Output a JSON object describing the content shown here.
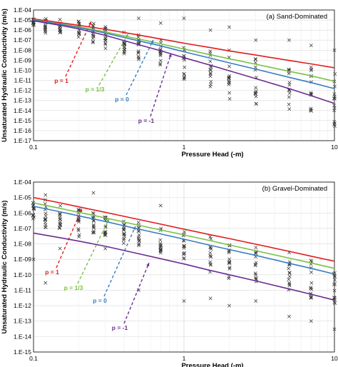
{
  "chart_data": [
    {
      "type": "line",
      "title": "(a) Sand-Dominated",
      "xlabel": "Pressure Head (-m)",
      "ylabel": "Unsaturated Hydraulic Conductivity (m/s)",
      "xscale": "log",
      "yscale": "log",
      "xlim": [
        0.1,
        10
      ],
      "ylim": [
        1e-17,
        0.0001
      ],
      "x_tick_labels": [
        "0.1",
        "1",
        "10"
      ],
      "y_tick_labels": [
        "1.E-17",
        "1.E-16",
        "1.E-15",
        "1.E-14",
        "1.E-13",
        "1.E-12",
        "1.E-11",
        "1.E-10",
        "1.E-09",
        "1.E-08",
        "1.E-07",
        "1.E-06",
        "1.E-05",
        "1.E-04"
      ],
      "grid": true,
      "series": [
        {
          "name": "p = 1",
          "color": "#e31a1c",
          "x": [
            0.1,
            0.15,
            0.2,
            0.3,
            0.5,
            0.7,
            1,
            1.5,
            2,
            3,
            5,
            7,
            10
          ],
          "y": [
            1.3e-05,
            5.5e-06,
            3e-06,
            1.2e-06,
            3.2e-07,
            1.3e-07,
            5e-08,
            1.8e-08,
            8.5e-09,
            3.3e-09,
            9.5e-10,
            4.3e-10,
            1.8e-10
          ]
        },
        {
          "name": "p = 1/3",
          "color": "#7ac143",
          "x": [
            0.1,
            0.15,
            0.2,
            0.3,
            0.5,
            0.7,
            1,
            1.5,
            2,
            3,
            5,
            7,
            10
          ],
          "y": [
            1.1e-05,
            4.2e-06,
            2.1e-06,
            6.5e-07,
            1.3e-07,
            4.3e-08,
            1.3e-08,
            3.5e-09,
            1.4e-09,
            4e-10,
            8e-11,
            2.8e-11,
            8e-12
          ]
        },
        {
          "name": "p = 0",
          "color": "#3a7cc4",
          "x": [
            0.1,
            0.15,
            0.2,
            0.3,
            0.5,
            0.7,
            1,
            1.5,
            2,
            3,
            5,
            7,
            10
          ],
          "y": [
            1e-05,
            3.8e-06,
            1.8e-06,
            5e-07,
            8.5e-08,
            2.7e-08,
            7e-09,
            1.6e-09,
            5.5e-10,
            1.3e-10,
            2e-11,
            6e-12,
            1.5e-12
          ]
        },
        {
          "name": "p = -1",
          "color": "#6a2c91",
          "x": [
            0.1,
            0.15,
            0.2,
            0.3,
            0.5,
            0.7,
            1,
            1.5,
            2,
            3,
            5,
            7,
            10
          ],
          "y": [
            8.5e-06,
            3e-06,
            1.3e-06,
            3e-07,
            3.5e-08,
            9e-09,
            1.8e-09,
            3.2e-10,
            9e-11,
            1.5e-11,
            1.5e-12,
            3e-13,
            5e-14
          ]
        }
      ],
      "scatter_columns": [
        {
          "x": 0.1,
          "y_high": 1.5e-05,
          "y_low": 3e-06
        },
        {
          "x": 0.12,
          "y_high": 2.5e-05,
          "y_low": 2e-07
        },
        {
          "x": 0.15,
          "y_high": 1.5e-05,
          "y_low": 5e-07
        },
        {
          "x": 0.2,
          "y_high": 8e-06,
          "y_low": 1.5e-07
        },
        {
          "x": 0.25,
          "y_high": 5e-06,
          "y_low": 3e-08
        },
        {
          "x": 0.3,
          "y_high": 3e-06,
          "y_low": 1e-08
        },
        {
          "x": 0.4,
          "y_high": 1e-06,
          "y_low": 4e-09
        },
        {
          "x": 0.5,
          "y_high": 5e-07,
          "y_low": 1e-09
        },
        {
          "x": 0.7,
          "y_high": 2e-07,
          "y_low": 2e-10
        },
        {
          "x": 1,
          "y_high": 6e-08,
          "y_low": 1e-11
        },
        {
          "x": 1.5,
          "y_high": 2e-08,
          "y_low": 1e-12
        },
        {
          "x": 2,
          "y_high": 1e-08,
          "y_low": 1e-13
        },
        {
          "x": 3,
          "y_high": 2e-09,
          "y_low": 1e-14
        },
        {
          "x": 5,
          "y_high": 6e-10,
          "y_low": 5e-15
        },
        {
          "x": 7,
          "y_high": 2e-10,
          "y_low": 1e-15
        },
        {
          "x": 10,
          "y_high": 5e-11,
          "y_low": 2e-16
        }
      ],
      "scatter_outliers": [
        {
          "x": 0.5,
          "y": 1.5e-05
        },
        {
          "x": 0.7,
          "y": 5e-06
        },
        {
          "x": 1,
          "y": 1.5e-05
        },
        {
          "x": 1.5,
          "y": 1e-06
        },
        {
          "x": 2,
          "y": 2e-06
        },
        {
          "x": 3,
          "y": 1e-07
        },
        {
          "x": 5,
          "y": 1e-07
        },
        {
          "x": 7,
          "y": 3e-08
        },
        {
          "x": 10,
          "y": 1e-08
        }
      ]
    },
    {
      "type": "line",
      "title": "(b) Gravel-Dominated",
      "xlabel": "Pressure Head (-m)",
      "ylabel": "Unsaturated Hydraulic Conductivity (m/s)",
      "xscale": "log",
      "yscale": "log",
      "xlim": [
        0.1,
        10
      ],
      "ylim": [
        1e-15,
        0.0001
      ],
      "x_tick_labels": [
        "0.1",
        "1",
        "10"
      ],
      "y_tick_labels": [
        "1.E-15",
        "1.E-14",
        "1.E-13",
        "1.E-12",
        "1.E-11",
        "1.E-10",
        "1.E-09",
        "1.E-08",
        "1.E-07",
        "1.E-06",
        "1.E-05",
        "1.E-04"
      ],
      "grid": true,
      "series": [
        {
          "name": "p = 1",
          "color": "#e31a1c",
          "x": [
            0.1,
            0.15,
            0.2,
            0.3,
            0.5,
            0.7,
            1,
            1.5,
            2,
            3,
            5,
            7,
            10
          ],
          "y": [
            1e-05,
            4.5e-06,
            2.5e-06,
            1.1e-06,
            3.8e-07,
            1.9e-07,
            9e-08,
            3.9e-08,
            2.2e-08,
            9.5e-09,
            3.3e-09,
            1.6e-09,
            7.5e-10
          ]
        },
        {
          "name": "p = 1/3",
          "color": "#7ac143",
          "x": [
            0.1,
            0.15,
            0.2,
            0.3,
            0.5,
            0.7,
            1,
            1.5,
            2,
            3,
            5,
            7,
            10
          ],
          "y": [
            4.5e-06,
            2e-06,
            1.1e-06,
            4.8e-07,
            1.6e-07,
            8e-08,
            3.8e-08,
            1.6e-08,
            8.5e-09,
            3.6e-09,
            1.2e-09,
            5.8e-10,
            2.6e-10
          ]
        },
        {
          "name": "p = 0",
          "color": "#3a7cc4",
          "x": [
            0.1,
            0.15,
            0.2,
            0.3,
            0.5,
            0.7,
            1,
            1.5,
            2,
            3,
            5,
            7,
            10
          ],
          "y": [
            2.7e-06,
            1.2e-06,
            6.5e-07,
            2.8e-07,
            9e-08,
            4.4e-08,
            2e-08,
            8e-09,
            4.3e-09,
            1.8e-09,
            5.5e-10,
            2.6e-10,
            1.1e-10
          ]
        },
        {
          "name": "p = -1",
          "color": "#6a2c91",
          "x": [
            0.1,
            0.15,
            0.2,
            0.3,
            0.5,
            0.7,
            1,
            1.5,
            2,
            3,
            5,
            7,
            10
          ],
          "y": [
            5e-08,
            2.5e-08,
            1.5e-08,
            7e-09,
            2.3e-09,
            1.1e-09,
            5e-10,
            1.9e-10,
            1e-10,
            4e-11,
            1.2e-11,
            5.5e-12,
            2.3e-12
          ]
        }
      ],
      "scatter_columns": [
        {
          "x": 0.1,
          "y_high": 5e-06,
          "y_low": 3e-07
        },
        {
          "x": 0.12,
          "y_high": 2e-05,
          "y_low": 1e-07
        },
        {
          "x": 0.15,
          "y_high": 4e-06,
          "y_low": 1e-07
        },
        {
          "x": 0.2,
          "y_high": 3e-06,
          "y_low": 2e-08
        },
        {
          "x": 0.25,
          "y_high": 1.5e-06,
          "y_low": 5e-08
        },
        {
          "x": 0.3,
          "y_high": 1e-06,
          "y_low": 2e-08
        },
        {
          "x": 0.4,
          "y_high": 6e-07,
          "y_low": 1e-08
        },
        {
          "x": 0.5,
          "y_high": 3e-07,
          "y_low": 5e-09
        },
        {
          "x": 0.7,
          "y_high": 2e-07,
          "y_low": 2e-09
        },
        {
          "x": 1,
          "y_high": 8e-08,
          "y_low": 1e-09
        },
        {
          "x": 1.5,
          "y_high": 4e-08,
          "y_low": 1e-10
        },
        {
          "x": 2,
          "y_high": 2e-08,
          "y_low": 5e-11
        },
        {
          "x": 3,
          "y_high": 8e-09,
          "y_low": 3e-11
        },
        {
          "x": 5,
          "y_high": 3e-09,
          "y_low": 1e-11
        },
        {
          "x": 7,
          "y_high": 1e-09,
          "y_low": 3e-12
        },
        {
          "x": 10,
          "y_high": 3e-10,
          "y_low": 1e-12
        }
      ],
      "scatter_outliers": [
        {
          "x": 0.1,
          "y": 1e-09
        },
        {
          "x": 0.12,
          "y": 3e-11
        },
        {
          "x": 0.15,
          "y": 5e-09
        },
        {
          "x": 0.25,
          "y": 2e-05
        },
        {
          "x": 0.3,
          "y": 5e-09
        },
        {
          "x": 0.5,
          "y": 1e-11
        },
        {
          "x": 0.7,
          "y": 3e-06
        },
        {
          "x": 1,
          "y": 2e-12
        },
        {
          "x": 1.5,
          "y": 3e-12
        },
        {
          "x": 2,
          "y": 1e-12
        },
        {
          "x": 3,
          "y": 2e-12
        },
        {
          "x": 5,
          "y": 2e-13
        },
        {
          "x": 7,
          "y": 1e-13
        },
        {
          "x": 10,
          "y": 3e-14
        }
      ]
    }
  ]
}
